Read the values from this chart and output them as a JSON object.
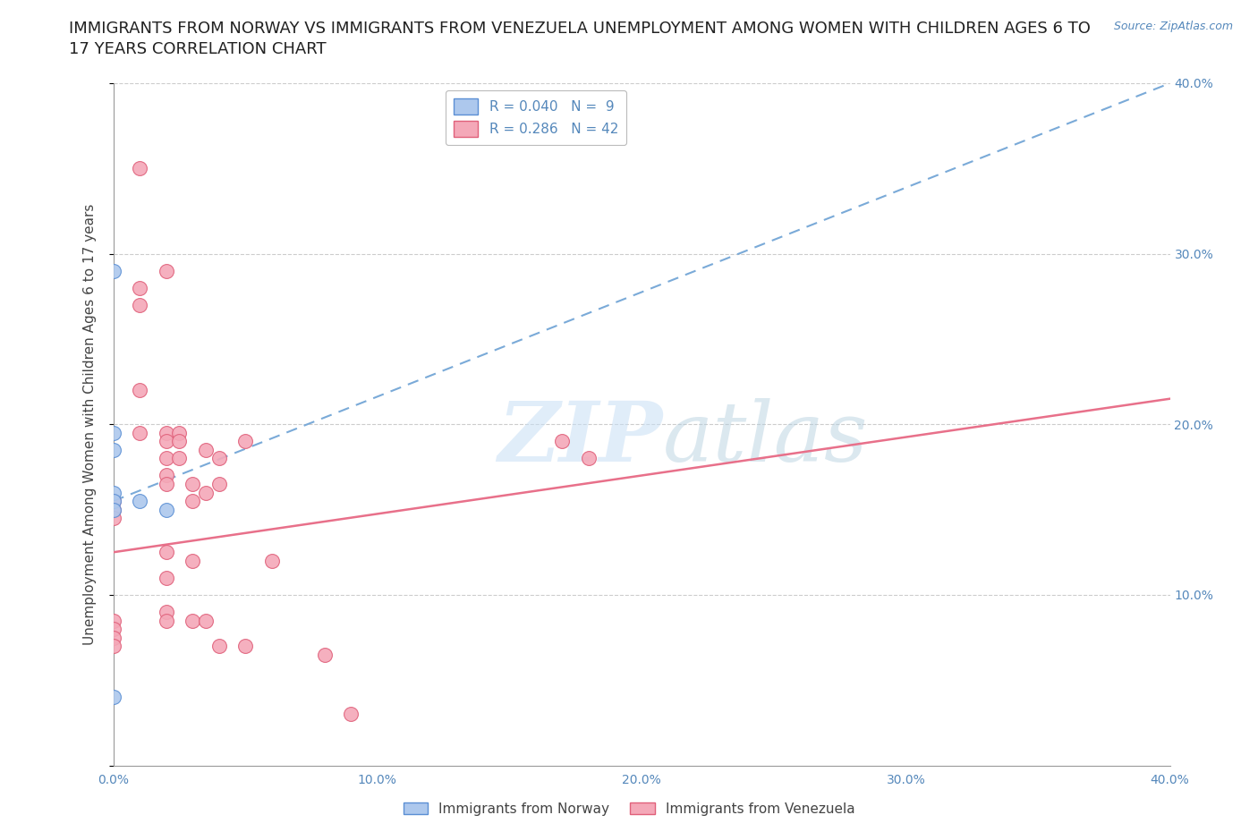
{
  "title_line1": "IMMIGRANTS FROM NORWAY VS IMMIGRANTS FROM VENEZUELA UNEMPLOYMENT AMONG WOMEN WITH CHILDREN AGES 6 TO",
  "title_line2": "17 YEARS CORRELATION CHART",
  "source": "Source: ZipAtlas.com",
  "ylabel": "Unemployment Among Women with Children Ages 6 to 17 years",
  "xlim": [
    0.0,
    0.4
  ],
  "ylim": [
    0.0,
    0.4
  ],
  "xticks": [
    0.0,
    0.1,
    0.2,
    0.3,
    0.4
  ],
  "yticks": [
    0.0,
    0.1,
    0.2,
    0.3,
    0.4
  ],
  "norway_color": "#adc8ed",
  "venezuela_color": "#f4a8b8",
  "norway_edge_color": "#5b8fd4",
  "venezuela_edge_color": "#e0607a",
  "trend_norway_color": "#7aaad8",
  "trend_venezuela_color": "#e8708a",
  "R_norway": 0.04,
  "N_norway": 9,
  "R_venezuela": 0.286,
  "N_venezuela": 42,
  "norway_x": [
    0.0,
    0.0,
    0.0,
    0.0,
    0.0,
    0.0,
    0.01,
    0.02,
    0.0
  ],
  "norway_y": [
    0.29,
    0.195,
    0.185,
    0.16,
    0.155,
    0.15,
    0.155,
    0.15,
    0.04
  ],
  "venezuela_x": [
    0.0,
    0.0,
    0.0,
    0.0,
    0.0,
    0.0,
    0.0,
    0.01,
    0.01,
    0.01,
    0.01,
    0.01,
    0.02,
    0.02,
    0.02,
    0.02,
    0.02,
    0.02,
    0.02,
    0.02,
    0.02,
    0.02,
    0.025,
    0.025,
    0.025,
    0.03,
    0.03,
    0.03,
    0.03,
    0.035,
    0.035,
    0.035,
    0.04,
    0.04,
    0.04,
    0.05,
    0.05,
    0.06,
    0.08,
    0.09,
    0.17,
    0.18
  ],
  "venezuela_y": [
    0.155,
    0.15,
    0.145,
    0.085,
    0.08,
    0.075,
    0.07,
    0.35,
    0.28,
    0.27,
    0.22,
    0.195,
    0.29,
    0.195,
    0.19,
    0.18,
    0.17,
    0.165,
    0.125,
    0.11,
    0.09,
    0.085,
    0.195,
    0.19,
    0.18,
    0.165,
    0.155,
    0.12,
    0.085,
    0.185,
    0.16,
    0.085,
    0.18,
    0.165,
    0.07,
    0.19,
    0.07,
    0.12,
    0.065,
    0.03,
    0.19,
    0.18
  ],
  "watermark_zip": "ZIP",
  "watermark_atlas": "atlas",
  "background_color": "#ffffff",
  "grid_color": "#cccccc",
  "title_fontsize": 13,
  "label_fontsize": 11,
  "tick_fontsize": 10,
  "legend_fontsize": 11,
  "source_fontsize": 9,
  "scatter_size": 130
}
